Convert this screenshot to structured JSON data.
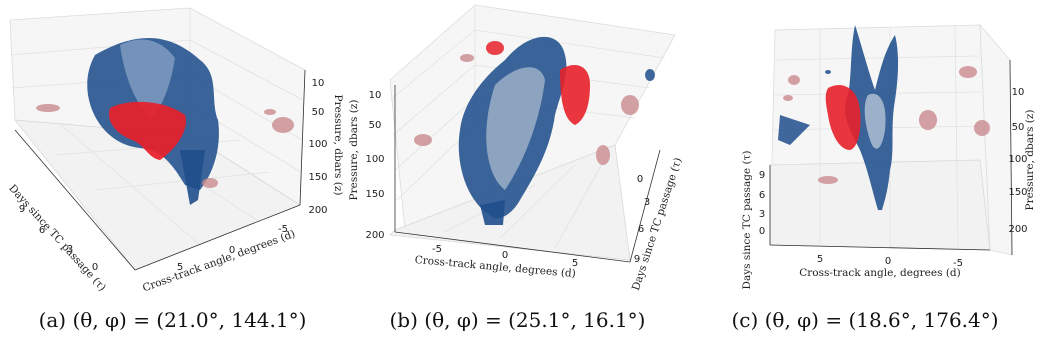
{
  "chart_data": [
    {
      "type": "3d-isosurface",
      "caption_label": "(a)",
      "caption_expr": "(θ, φ) = (21.0°, 144.1°)",
      "view": {
        "theta_deg": 21.0,
        "phi_deg": 144.1
      },
      "x_axis": {
        "label": "Cross-track angle, degrees (d)",
        "ticks": [
          "5",
          "0",
          "-5"
        ]
      },
      "y_axis": {
        "label": "Days since TC passage (τ)",
        "ticks": [
          "9",
          "6",
          "3",
          "0"
        ]
      },
      "z_axis": {
        "label": "Pressure, dbars (z)",
        "ticks": [
          "10",
          "50",
          "100",
          "150",
          "200"
        ]
      },
      "surfaces": [
        {
          "color": "#1f4e8c"
        },
        {
          "color": "#e8202a"
        }
      ],
      "grid": true
    },
    {
      "type": "3d-isosurface",
      "caption_label": "(b)",
      "caption_expr": "(θ, φ) = (25.1°, 16.1°)",
      "view": {
        "theta_deg": 25.1,
        "phi_deg": 16.1
      },
      "x_axis": {
        "label": "Cross-track angle, degrees (d)",
        "ticks": [
          "-5",
          "0",
          "5"
        ]
      },
      "y_axis": {
        "label": "Days since TC passage (τ)",
        "ticks": [
          "0",
          "3",
          "6",
          "9"
        ]
      },
      "z_axis": {
        "label": "Pressure, dbars (z)",
        "ticks": [
          "10",
          "50",
          "100",
          "150",
          "200"
        ]
      },
      "surfaces": [
        {
          "color": "#1f4e8c"
        },
        {
          "color": "#e8202a"
        }
      ],
      "grid": true
    },
    {
      "type": "3d-isosurface",
      "caption_label": "(c)",
      "caption_expr": "(θ, φ) = (18.6°, 176.4°)",
      "view": {
        "theta_deg": 18.6,
        "phi_deg": 176.4
      },
      "x_axis": {
        "label": "Cross-track angle, degrees (d)",
        "ticks": [
          "5",
          "0",
          "-5"
        ]
      },
      "y_axis": {
        "label": "Days since TC passage (τ)",
        "ticks": [
          "9",
          "6",
          "3",
          "0"
        ]
      },
      "z_axis": {
        "label": "Pressure, dbars (z)",
        "ticks": [
          "10",
          "50",
          "100",
          "150",
          "200"
        ]
      },
      "surfaces": [
        {
          "color": "#1f4e8c"
        },
        {
          "color": "#e8202a"
        }
      ],
      "grid": true
    }
  ]
}
